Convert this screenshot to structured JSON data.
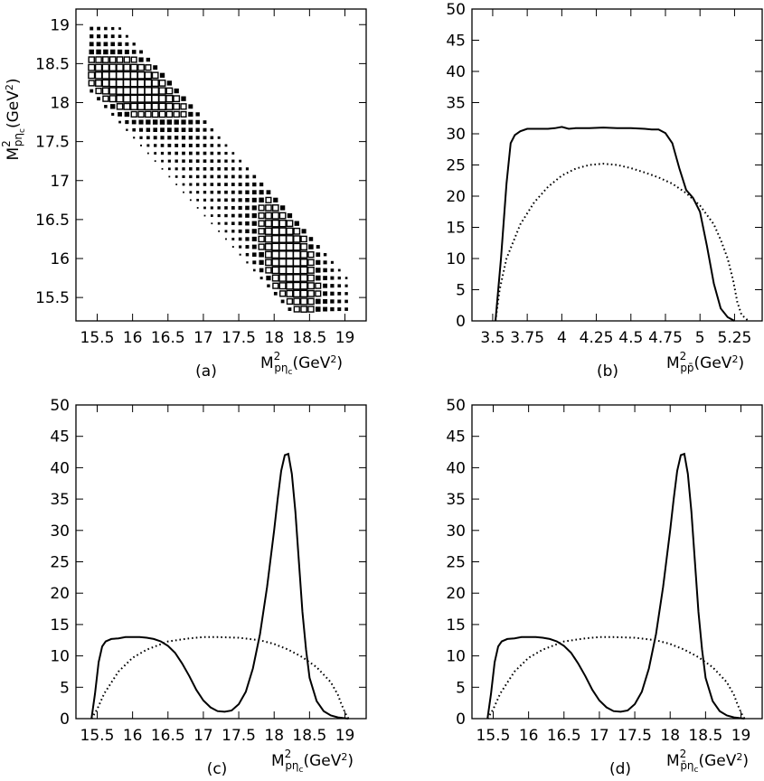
{
  "colors": {
    "ink": "#000000",
    "background": "#ffffff"
  },
  "chart_data": [
    {
      "panel": "a",
      "type": "heatmap",
      "panel_label": "(a)",
      "xlabel": "M²pηc(GeV²)",
      "ylabel": "M²pηc(GeV²)",
      "xlim": [
        15.2,
        19.3
      ],
      "ylim": [
        15.2,
        19.2
      ],
      "xticks": [
        15.5,
        16,
        16.5,
        17,
        17.5,
        18,
        18.5,
        19
      ],
      "xtick_labels": [
        "15.5",
        "16",
        "16.5",
        "17",
        "17.5",
        "18",
        "18.5",
        "19"
      ],
      "yticks": [
        15.5,
        16,
        16.5,
        17,
        17.5,
        18,
        18.5,
        19
      ],
      "ytick_labels": [
        "15.5",
        "16",
        "16.5",
        "17",
        "17.5",
        "18",
        "18.5",
        "19"
      ],
      "grid": false,
      "kinematic_sum": 34.2,
      "band_halfwidth": 0.65,
      "x_range": [
        15.42,
        19.05
      ],
      "resonance_mass_squared": 18.2,
      "resonance_width": 0.3,
      "bin_size": 0.1
    },
    {
      "panel": "b",
      "type": "line",
      "panel_label": "(b)",
      "xlabel": "M²pp̄(GeV²)",
      "ylabel": "",
      "xlim": [
        3.35,
        5.45
      ],
      "ylim": [
        0,
        50
      ],
      "xticks": [
        3.5,
        3.75,
        4,
        4.25,
        4.5,
        4.75,
        5,
        5.25
      ],
      "xtick_labels": [
        "3.5",
        "3.75",
        "4",
        "4.25",
        "4.5",
        "4.75",
        "5",
        "5.25"
      ],
      "yticks": [
        0,
        5,
        10,
        15,
        20,
        25,
        30,
        35,
        40,
        45,
        50
      ],
      "ytick_labels": [
        "0",
        "5",
        "10",
        "15",
        "20",
        "25",
        "30",
        "35",
        "40",
        "45",
        "50"
      ],
      "grid": false,
      "series": [
        {
          "style": "solid",
          "x": [
            3.52,
            3.56,
            3.6,
            3.63,
            3.66,
            3.7,
            3.75,
            3.8,
            3.9,
            3.95,
            4.0,
            4.05,
            4.1,
            4.2,
            4.3,
            4.4,
            4.5,
            4.6,
            4.65,
            4.7,
            4.75,
            4.8,
            4.85,
            4.9,
            4.95,
            5.0,
            5.05,
            5.1,
            5.15,
            5.2,
            5.25
          ],
          "y": [
            0,
            10,
            22,
            28.5,
            29.8,
            30.4,
            30.8,
            30.8,
            30.8,
            30.9,
            31.1,
            30.8,
            30.9,
            30.9,
            31.0,
            30.9,
            30.9,
            30.8,
            30.7,
            30.7,
            30.1,
            28.5,
            24.5,
            21.0,
            19.7,
            17.5,
            12.0,
            6.0,
            2.0,
            0.6,
            0
          ]
        },
        {
          "style": "dotted",
          "x": [
            3.52,
            3.55,
            3.6,
            3.7,
            3.8,
            3.9,
            4.0,
            4.1,
            4.2,
            4.3,
            4.4,
            4.5,
            4.6,
            4.7,
            4.8,
            4.9,
            5.0,
            5.1,
            5.15,
            5.2,
            5.24,
            5.27,
            5.3,
            5.35
          ],
          "y": [
            0,
            5,
            10,
            15.5,
            19.0,
            21.5,
            23.3,
            24.4,
            25.0,
            25.2,
            25.0,
            24.5,
            23.8,
            23.0,
            22.0,
            20.5,
            18.5,
            15.5,
            13.0,
            10.0,
            6.5,
            3.0,
            1.0,
            0
          ]
        }
      ]
    },
    {
      "panel": "c",
      "type": "line",
      "panel_label": "(c)",
      "xlabel": "M²pηc(GeV²)",
      "ylabel": "",
      "xlim": [
        15.2,
        19.3
      ],
      "ylim": [
        0,
        50
      ],
      "xticks": [
        15.5,
        16,
        16.5,
        17,
        17.5,
        18,
        18.5,
        19
      ],
      "xtick_labels": [
        "15.5",
        "16",
        "16.5",
        "17",
        "17.5",
        "18",
        "18.5",
        "19"
      ],
      "yticks": [
        0,
        5,
        10,
        15,
        20,
        25,
        30,
        35,
        40,
        45,
        50
      ],
      "ytick_labels": [
        "0",
        "5",
        "10",
        "15",
        "20",
        "25",
        "30",
        "35",
        "40",
        "45",
        "50"
      ],
      "grid": false,
      "series": [
        {
          "style": "solid",
          "x": [
            15.42,
            15.47,
            15.52,
            15.57,
            15.62,
            15.7,
            15.8,
            15.9,
            16.0,
            16.1,
            16.2,
            16.3,
            16.4,
            16.5,
            16.6,
            16.7,
            16.8,
            16.9,
            17.0,
            17.1,
            17.2,
            17.3,
            17.4,
            17.5,
            17.6,
            17.7,
            17.8,
            17.9,
            18.0,
            18.05,
            18.1,
            18.15,
            18.2,
            18.25,
            18.3,
            18.35,
            18.4,
            18.45,
            18.5,
            18.6,
            18.7,
            18.8,
            18.9,
            19.05
          ],
          "y": [
            0,
            4,
            9,
            11.5,
            12.3,
            12.7,
            12.8,
            13.0,
            13.0,
            13.0,
            12.9,
            12.7,
            12.3,
            11.6,
            10.5,
            8.8,
            6.8,
            4.6,
            2.9,
            1.8,
            1.2,
            1.1,
            1.3,
            2.3,
            4.3,
            8.0,
            13.5,
            21.0,
            30.0,
            35.0,
            39.5,
            42.0,
            42.2,
            39.0,
            33.0,
            25.0,
            17.0,
            11.0,
            6.5,
            2.8,
            1.2,
            0.5,
            0.2,
            0
          ]
        },
        {
          "style": "dotted",
          "x": [
            15.42,
            15.5,
            15.6,
            15.8,
            16.0,
            16.2,
            16.5,
            16.8,
            17.0,
            17.2,
            17.5,
            17.8,
            18.0,
            18.2,
            18.4,
            18.6,
            18.8,
            18.9,
            18.95,
            19.0,
            19.05
          ],
          "y": [
            0,
            1.5,
            4,
            7.5,
            9.7,
            11.0,
            12.3,
            12.8,
            13.0,
            13.0,
            12.9,
            12.5,
            11.9,
            11.0,
            9.8,
            8.2,
            5.8,
            3.8,
            2.3,
            1.0,
            0
          ]
        }
      ]
    },
    {
      "panel": "d",
      "type": "line",
      "panel_label": "(d)",
      "xlabel": "M²p̄ηc(GeV²)",
      "ylabel": "",
      "xlim": [
        15.2,
        19.3
      ],
      "ylim": [
        0,
        50
      ],
      "xticks": [
        15.5,
        16,
        16.5,
        17,
        17.5,
        18,
        18.5,
        19
      ],
      "xtick_labels": [
        "15.5",
        "16",
        "16.5",
        "17",
        "17.5",
        "18",
        "18.5",
        "19"
      ],
      "yticks": [
        0,
        5,
        10,
        15,
        20,
        25,
        30,
        35,
        40,
        45,
        50
      ],
      "ytick_labels": [
        "0",
        "5",
        "10",
        "15",
        "20",
        "25",
        "30",
        "35",
        "40",
        "45",
        "50"
      ],
      "grid": false,
      "series": [
        {
          "style": "solid",
          "x": [
            15.42,
            15.47,
            15.52,
            15.57,
            15.62,
            15.7,
            15.8,
            15.9,
            16.0,
            16.1,
            16.2,
            16.3,
            16.4,
            16.5,
            16.6,
            16.7,
            16.8,
            16.9,
            17.0,
            17.1,
            17.2,
            17.3,
            17.4,
            17.5,
            17.6,
            17.7,
            17.8,
            17.9,
            18.0,
            18.05,
            18.1,
            18.15,
            18.2,
            18.25,
            18.3,
            18.35,
            18.4,
            18.45,
            18.5,
            18.6,
            18.7,
            18.8,
            18.9,
            19.05
          ],
          "y": [
            0,
            4,
            9,
            11.5,
            12.3,
            12.7,
            12.8,
            13.0,
            13.0,
            13.0,
            12.9,
            12.7,
            12.3,
            11.6,
            10.5,
            8.8,
            6.8,
            4.6,
            2.9,
            1.8,
            1.2,
            1.1,
            1.3,
            2.3,
            4.3,
            8.0,
            13.5,
            21.0,
            30.0,
            35.0,
            39.5,
            42.0,
            42.2,
            39.0,
            33.0,
            25.0,
            17.0,
            11.0,
            6.5,
            2.8,
            1.2,
            0.5,
            0.2,
            0
          ]
        },
        {
          "style": "dotted",
          "x": [
            15.42,
            15.5,
            15.6,
            15.8,
            16.0,
            16.2,
            16.5,
            16.8,
            17.0,
            17.2,
            17.5,
            17.8,
            18.0,
            18.2,
            18.4,
            18.6,
            18.8,
            18.9,
            18.95,
            19.0,
            19.05
          ],
          "y": [
            0,
            1.5,
            4,
            7.5,
            9.7,
            11.0,
            12.3,
            12.8,
            13.0,
            13.0,
            12.9,
            12.5,
            11.9,
            11.0,
            9.8,
            8.2,
            5.8,
            3.8,
            2.3,
            1.0,
            0
          ]
        }
      ]
    }
  ]
}
